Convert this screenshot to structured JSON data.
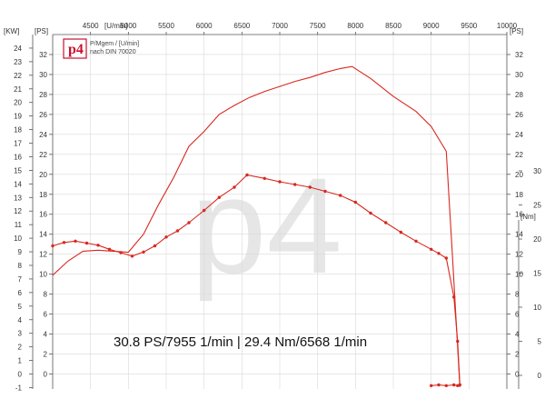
{
  "chart_data": {
    "type": "line",
    "title": "",
    "xlabel": "[U/min]",
    "x_top_ticks": [
      4500,
      5000,
      5500,
      6000,
      6500,
      7000,
      7500,
      8000,
      8500,
      9000,
      9500,
      10000
    ],
    "xlim": [
      4000,
      10000
    ],
    "left_kw_label": "[KW]",
    "left_kw_ticks": [
      24,
      23,
      22,
      21,
      20,
      19,
      18,
      17,
      16,
      15,
      14,
      13,
      12,
      11,
      10,
      9,
      8,
      7,
      6,
      5,
      4,
      3,
      2,
      1,
      0,
      -1
    ],
    "left_ps_label": "[PS]",
    "left_ps_ticks": [
      32,
      30,
      28,
      26,
      24,
      22,
      20,
      18,
      16,
      14,
      12,
      10,
      8,
      6,
      4,
      2,
      0
    ],
    "ps_range": [
      -1.5,
      34
    ],
    "right_ps_label": "[PS]",
    "right_ps_ticks": [
      32,
      30,
      28,
      26,
      24,
      22,
      20,
      18,
      16,
      14,
      12,
      10,
      8,
      6,
      4,
      2,
      0
    ],
    "right_nm_label": "[Nm]",
    "right_nm_ticks": [
      30,
      25,
      20,
      15,
      10,
      5,
      0
    ],
    "nm_range": [
      -2,
      50
    ],
    "grid": true,
    "legend_note": {
      "line1": "P/Mgem / [U/min]",
      "line2": "nach DIN 70020"
    },
    "logo_text": "p4",
    "watermark": "p4",
    "summary": "30.8 PS/7955 1/min | 29.4 Nm/6568 1/min",
    "colors": {
      "curve": "#d8281f",
      "grid": "#d9d9d9"
    },
    "series": [
      {
        "axis": "ps",
        "x": [
          4000,
          4200,
          4400,
          4600,
          4800,
          5000,
          5200,
          5400,
          5600,
          5800,
          6000,
          6200,
          6400,
          6600,
          6800,
          7000,
          7200,
          7400,
          7600,
          7800,
          7955,
          8200,
          8500,
          8800,
          9000,
          9200,
          9280,
          9340,
          9380
        ],
        "values": [
          9.9,
          11.3,
          12.3,
          12.4,
          12.3,
          12.2,
          14.0,
          17.0,
          19.7,
          22.8,
          24.3,
          26.0,
          26.9,
          27.7,
          28.3,
          28.8,
          29.3,
          29.7,
          30.2,
          30.6,
          30.8,
          29.6,
          27.8,
          26.3,
          24.8,
          22.3,
          12.0,
          4.0,
          -1.3
        ]
      },
      {
        "axis": "nm",
        "x": [
          4000,
          4150,
          4300,
          4450,
          4600,
          4750,
          4900,
          5050,
          5200,
          5350,
          5500,
          5650,
          5800,
          6000,
          6200,
          6400,
          6568,
          6800,
          7000,
          7200,
          7400,
          7600,
          7800,
          8000,
          8200,
          8400,
          8600,
          8800,
          9000,
          9100,
          9200,
          9300,
          9350,
          9380
        ],
        "values": [
          19.0,
          19.5,
          19.7,
          19.4,
          19.1,
          18.5,
          18.0,
          17.5,
          18.1,
          19.0,
          20.3,
          21.2,
          22.4,
          24.2,
          26.1,
          27.6,
          29.4,
          28.9,
          28.4,
          28.0,
          27.6,
          27.0,
          26.4,
          25.4,
          23.8,
          22.4,
          21.0,
          19.7,
          18.5,
          17.9,
          17.2,
          11.5,
          5.0,
          -1.4
        ]
      },
      {
        "axis": "nm",
        "x": [
          9000,
          9100,
          9200,
          9300,
          9350
        ],
        "values": [
          -1.5,
          -1.4,
          -1.5,
          -1.4,
          -1.5
        ]
      }
    ]
  }
}
